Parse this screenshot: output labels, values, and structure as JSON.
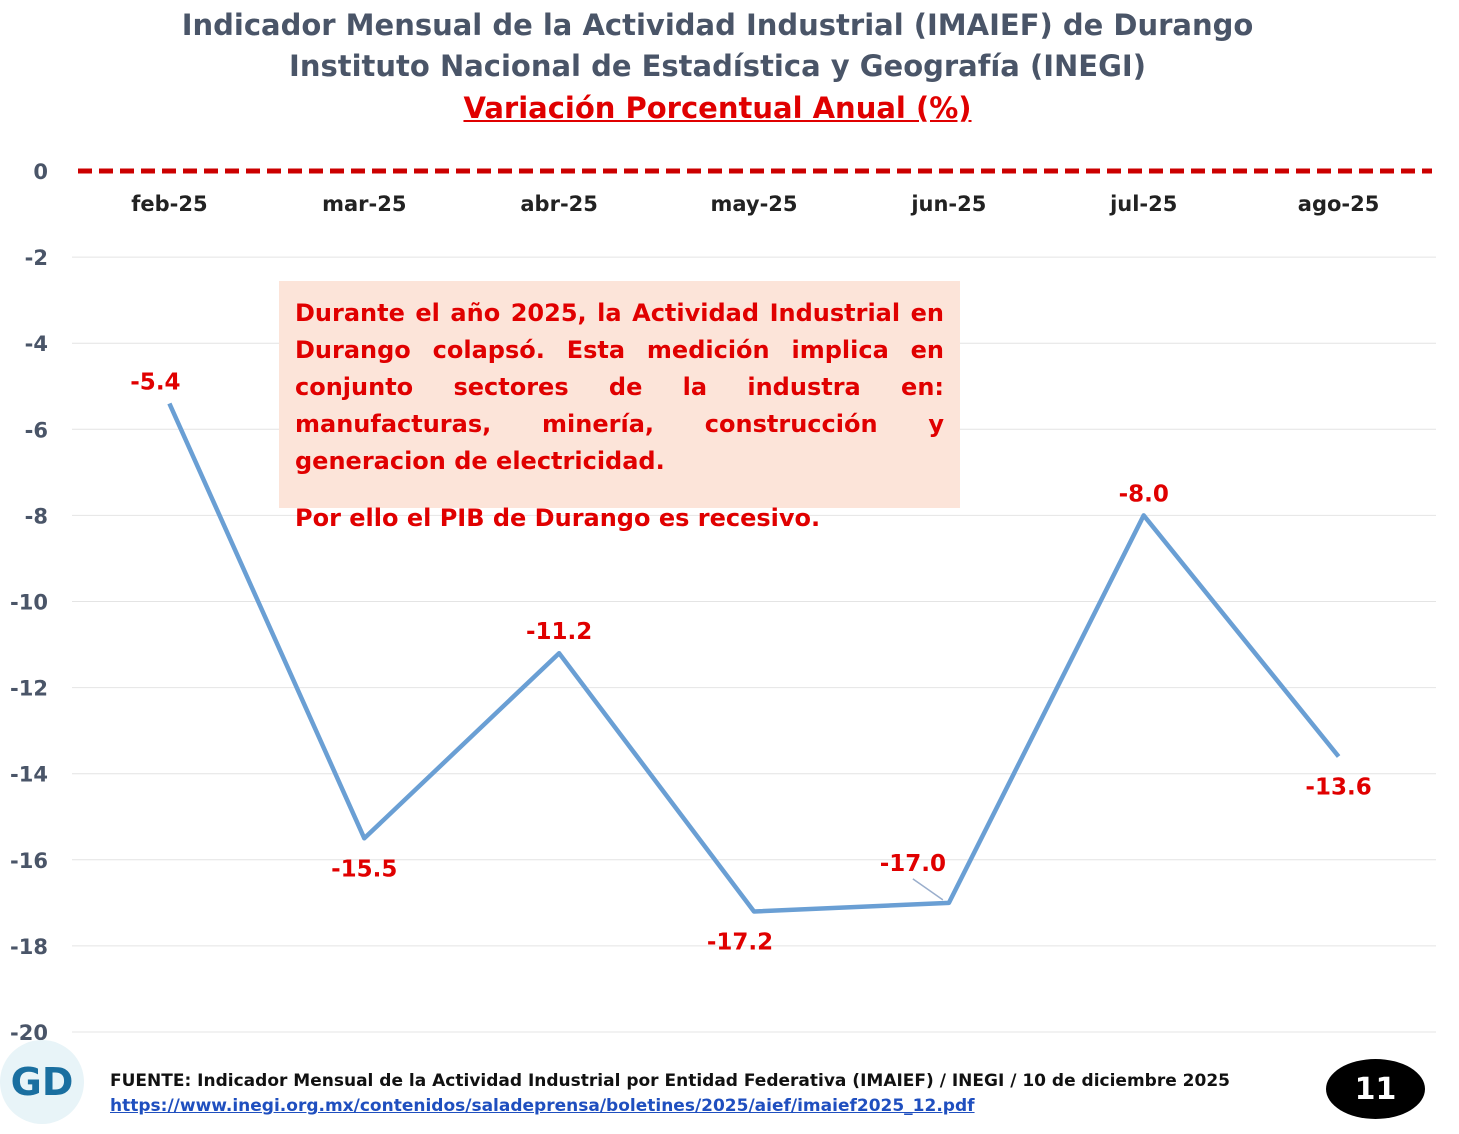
{
  "header": {
    "title_line1": "Indicador Mensual de la Actividad Industrial (IMAIEF) de Durango",
    "title_line2": "Instituto Nacional de Estadística y Geografía (INEGI)",
    "title_line3": "Variación Porcentual Anual (%)"
  },
  "callout": {
    "paragraph1": "Durante el año 2025, la Actividad Industrial en Durango colapsó. Esta medición implica en conjunto sectores de la industra en: manufacturas, minería, construcción y generacion de electricidad.",
    "paragraph2": "Por ello el PIB de Durango es recesivo."
  },
  "chart_data": {
    "type": "line",
    "categories": [
      "feb-25",
      "mar-25",
      "abr-25",
      "may-25",
      "jun-25",
      "jul-25",
      "ago-25"
    ],
    "series": [
      {
        "values": [
          -5.4,
          -15.5,
          -11.2,
          -17.2,
          -17.0,
          -8.0,
          -13.6
        ],
        "color": "#6a9fd4"
      }
    ],
    "data_labels": [
      "-5.4",
      "-15.5",
      "-11.2",
      "-17.2",
      "-17.0",
      "-8.0",
      "-13.6"
    ],
    "yticks": [
      "0",
      "-2",
      "-4",
      "-6",
      "-8",
      "-10",
      "-12",
      "-14",
      "-16",
      "-18",
      "-20"
    ],
    "ylim": [
      -20,
      0
    ],
    "grid": true,
    "zero_line": {
      "style": "dashed",
      "color": "#cc0000"
    },
    "label_color": "#e00000"
  },
  "footer": {
    "logo_text": "GD",
    "source": "FUENTE: Indicador Mensual de la Actividad Industrial por Entidad Federativa (IMAIEF) / INEGI / 10 de diciembre 2025",
    "link": "https://www.inegi.org.mx/contenidos/saladeprensa/boletines/2025/aief/imaief2025_12.pdf",
    "page_number": "11"
  }
}
